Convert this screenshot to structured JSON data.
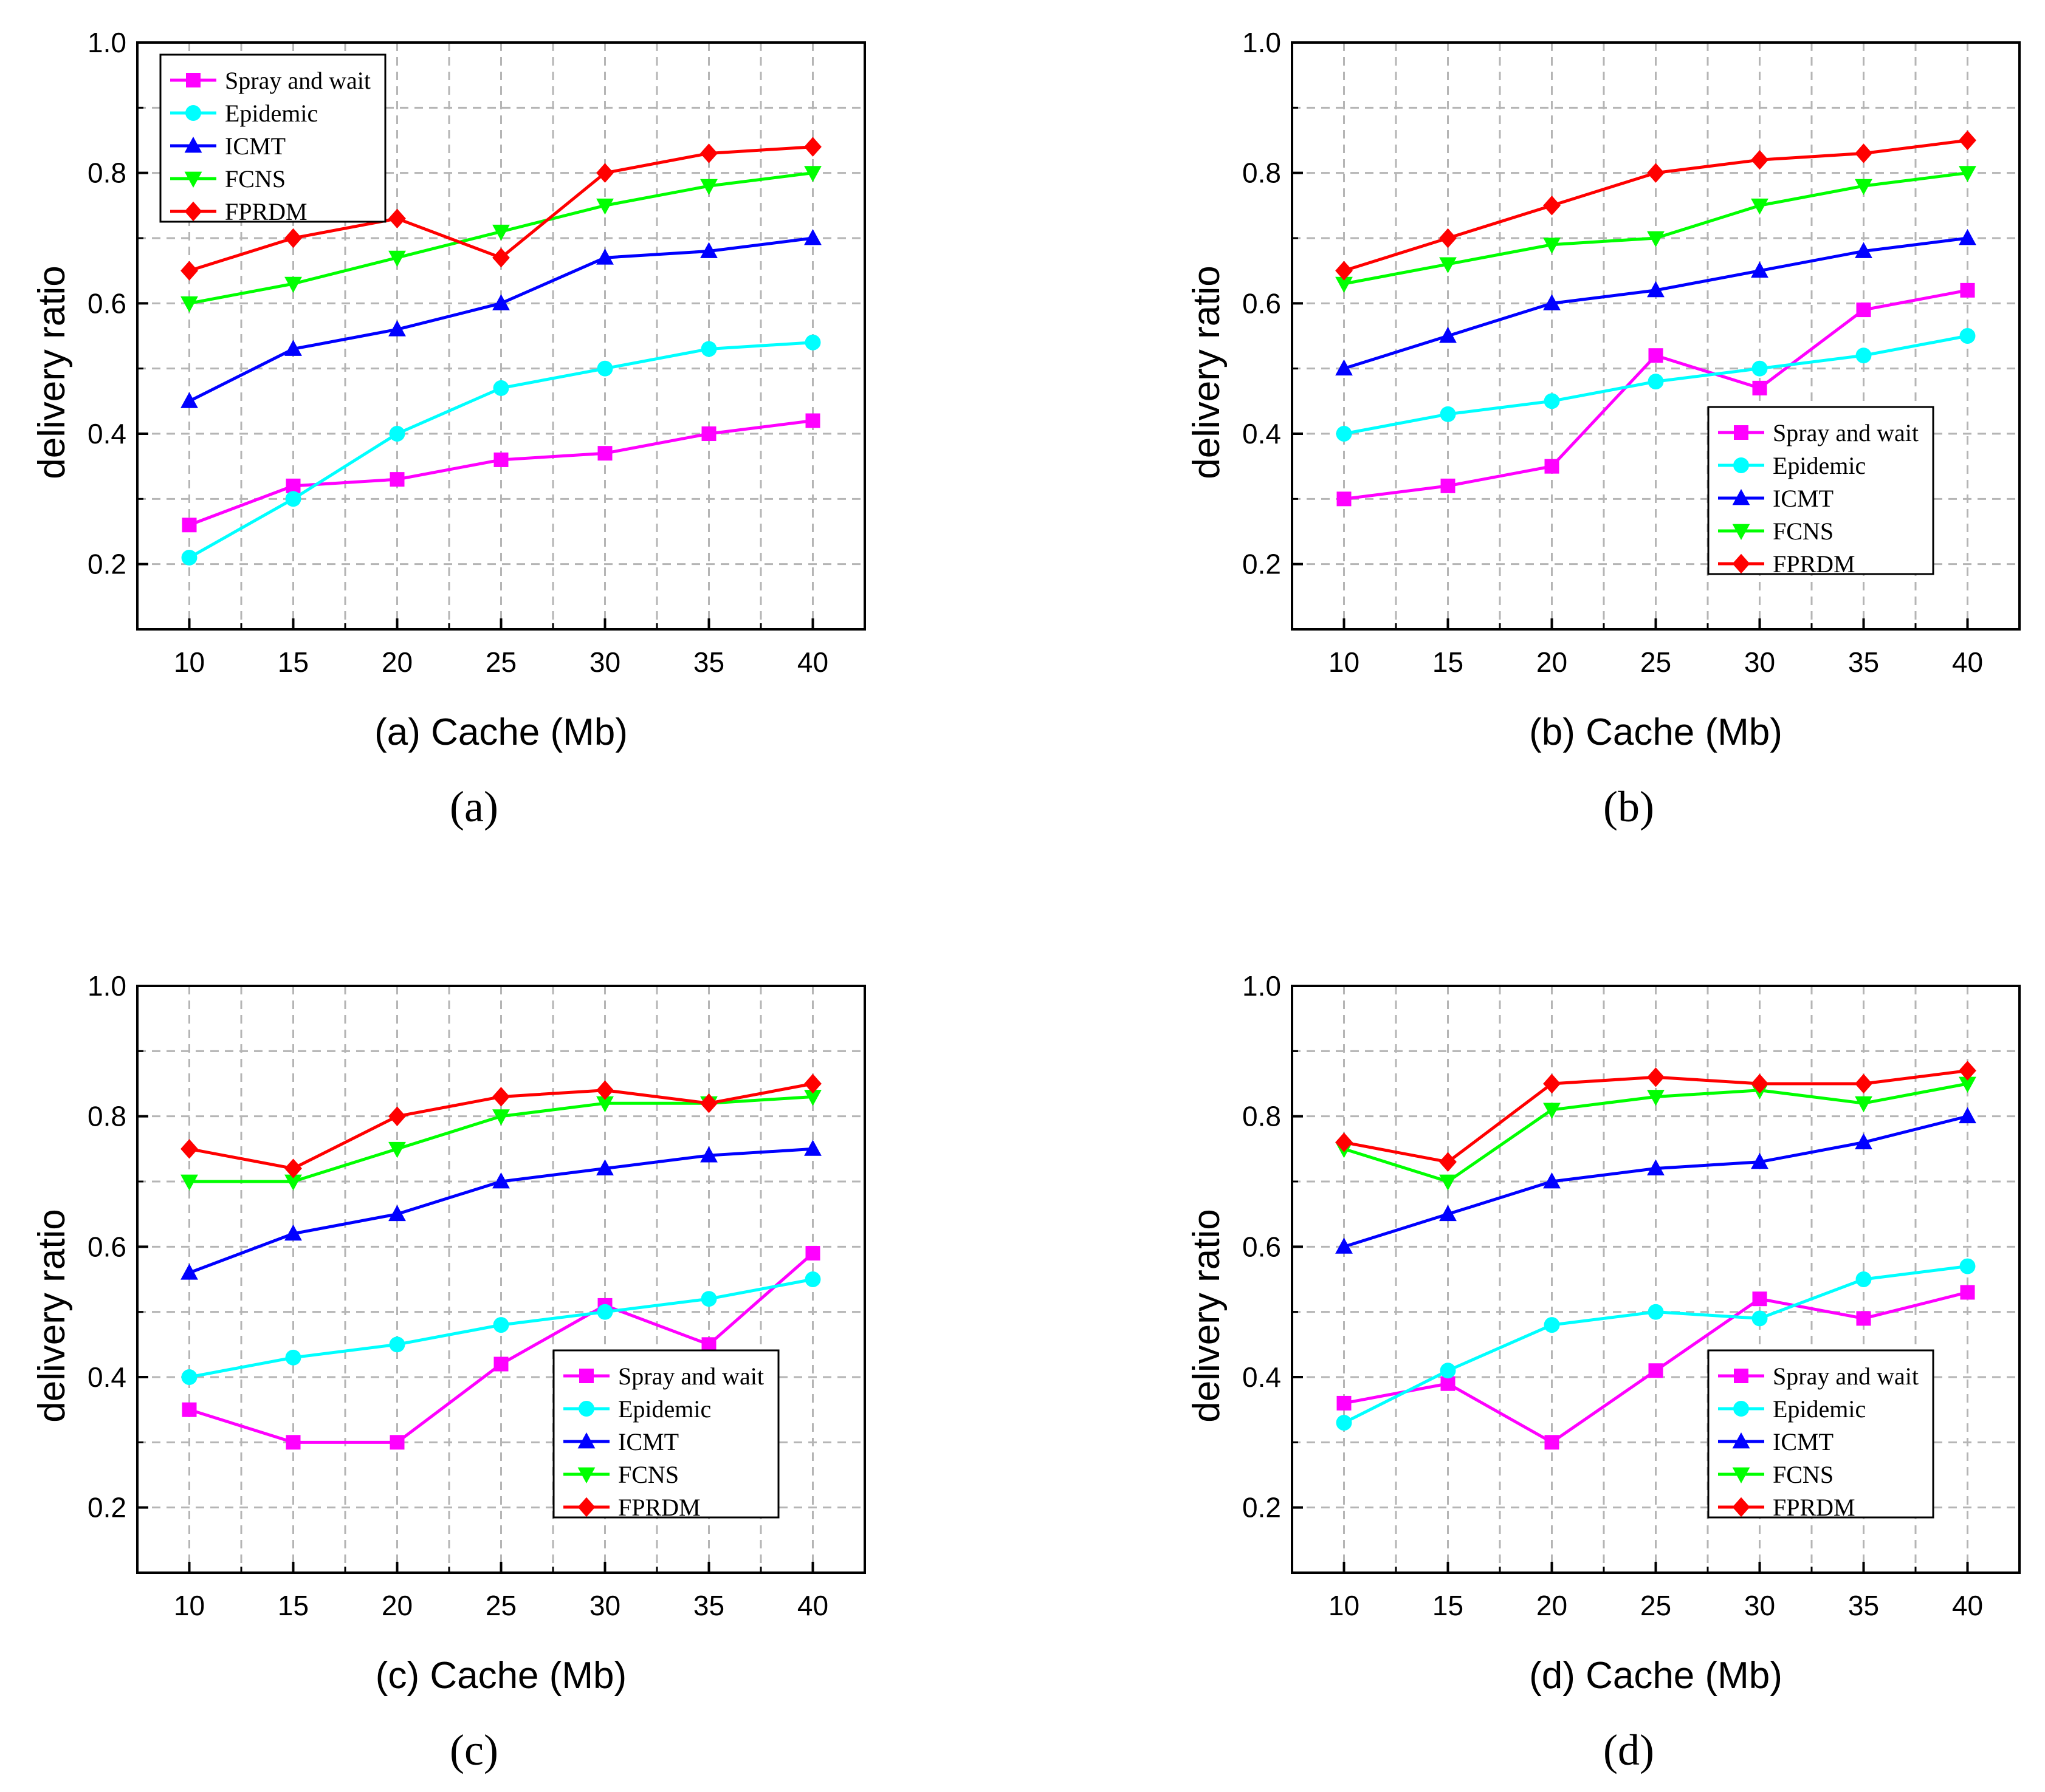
{
  "figure": {
    "subfigure_labels": [
      "(a)",
      "(b)",
      "(c)",
      "(d)"
    ]
  },
  "colors": {
    "Spray and wait": "#ff00ff",
    "Epidemic": "#00ffff",
    "ICMT": "#0000ff",
    "FCNS": "#00ff00",
    "FPRDM": "#ff0000"
  },
  "markers": {
    "Spray and wait": "square",
    "Epidemic": "circle",
    "ICMT": "triangle-up",
    "FCNS": "triangle-down",
    "FPRDM": "diamond"
  },
  "chart_data": [
    {
      "type": "line",
      "title": "",
      "xlabel": "(a) Cache (Mb)",
      "ylabel": "delivery ratio",
      "x": [
        10,
        15,
        20,
        25,
        30,
        35,
        40
      ],
      "xticks": [
        "10",
        "15",
        "20",
        "25",
        "30",
        "35",
        "40"
      ],
      "yticks": [
        "0.2",
        "0.4",
        "0.6",
        "0.8",
        "1.0"
      ],
      "xlim": [
        7.5,
        42.5
      ],
      "ylim": [
        0.1,
        1.0
      ],
      "grid": true,
      "legend": "top-left",
      "series": [
        {
          "name": "Spray and wait",
          "values": [
            0.26,
            0.32,
            0.33,
            0.36,
            0.37,
            0.4,
            0.42
          ]
        },
        {
          "name": "Epidemic",
          "values": [
            0.21,
            0.3,
            0.4,
            0.47,
            0.5,
            0.53,
            0.54
          ]
        },
        {
          "name": "ICMT",
          "values": [
            0.45,
            0.53,
            0.56,
            0.6,
            0.67,
            0.68,
            0.7
          ]
        },
        {
          "name": "FCNS",
          "values": [
            0.6,
            0.63,
            0.67,
            0.71,
            0.75,
            0.78,
            0.8
          ]
        },
        {
          "name": "FPRDM",
          "values": [
            0.65,
            0.7,
            0.73,
            0.67,
            0.8,
            0.83,
            0.84
          ]
        }
      ]
    },
    {
      "type": "line",
      "title": "",
      "xlabel": "(b) Cache (Mb)",
      "ylabel": "delivery ratio",
      "x": [
        10,
        15,
        20,
        25,
        30,
        35,
        40
      ],
      "xticks": [
        "10",
        "15",
        "20",
        "25",
        "30",
        "35",
        "40"
      ],
      "yticks": [
        "0.2",
        "0.4",
        "0.6",
        "0.8",
        "1.0"
      ],
      "xlim": [
        7.5,
        42.5
      ],
      "ylim": [
        0.1,
        1.0
      ],
      "grid": true,
      "legend": "bottom-right",
      "series": [
        {
          "name": "Spray and wait",
          "values": [
            0.3,
            0.32,
            0.35,
            0.52,
            0.47,
            0.59,
            0.62
          ]
        },
        {
          "name": "Epidemic",
          "values": [
            0.4,
            0.43,
            0.45,
            0.48,
            0.5,
            0.52,
            0.55
          ]
        },
        {
          "name": "ICMT",
          "values": [
            0.5,
            0.55,
            0.6,
            0.62,
            0.65,
            0.68,
            0.7
          ]
        },
        {
          "name": "FCNS",
          "values": [
            0.63,
            0.66,
            0.69,
            0.7,
            0.75,
            0.78,
            0.8
          ]
        },
        {
          "name": "FPRDM",
          "values": [
            0.65,
            0.7,
            0.75,
            0.8,
            0.82,
            0.83,
            0.85
          ]
        }
      ]
    },
    {
      "type": "line",
      "title": "",
      "xlabel": "(c) Cache (Mb)",
      "ylabel": "delivery ratio",
      "x": [
        10,
        15,
        20,
        25,
        30,
        35,
        40
      ],
      "xticks": [
        "10",
        "15",
        "20",
        "25",
        "30",
        "35",
        "40"
      ],
      "yticks": [
        "0.2",
        "0.4",
        "0.6",
        "0.8",
        "1.0"
      ],
      "xlim": [
        7.5,
        42.5
      ],
      "ylim": [
        0.1,
        1.0
      ],
      "grid": true,
      "legend": "bottom-right",
      "series": [
        {
          "name": "Spray and wait",
          "values": [
            0.35,
            0.3,
            0.3,
            0.42,
            0.51,
            0.45,
            0.59
          ]
        },
        {
          "name": "Epidemic",
          "values": [
            0.4,
            0.43,
            0.45,
            0.48,
            0.5,
            0.52,
            0.55
          ]
        },
        {
          "name": "ICMT",
          "values": [
            0.56,
            0.62,
            0.65,
            0.7,
            0.72,
            0.74,
            0.75
          ]
        },
        {
          "name": "FCNS",
          "values": [
            0.7,
            0.7,
            0.75,
            0.8,
            0.82,
            0.82,
            0.83
          ]
        },
        {
          "name": "FPRDM",
          "values": [
            0.75,
            0.72,
            0.8,
            0.83,
            0.84,
            0.82,
            0.85
          ]
        }
      ]
    },
    {
      "type": "line",
      "title": "",
      "xlabel": "(d) Cache (Mb)",
      "ylabel": "delivery ratio",
      "x": [
        10,
        15,
        20,
        25,
        30,
        35,
        40
      ],
      "xticks": [
        "10",
        "15",
        "20",
        "25",
        "30",
        "35",
        "40"
      ],
      "yticks": [
        "0.2",
        "0.4",
        "0.6",
        "0.8",
        "1.0"
      ],
      "xlim": [
        7.5,
        42.5
      ],
      "ylim": [
        0.1,
        1.0
      ],
      "grid": true,
      "legend": "bottom-right",
      "series": [
        {
          "name": "Spray and wait",
          "values": [
            0.36,
            0.39,
            0.3,
            0.41,
            0.52,
            0.49,
            0.53
          ]
        },
        {
          "name": "Epidemic",
          "values": [
            0.33,
            0.41,
            0.48,
            0.5,
            0.49,
            0.55,
            0.57
          ]
        },
        {
          "name": "ICMT",
          "values": [
            0.6,
            0.65,
            0.7,
            0.72,
            0.73,
            0.76,
            0.8
          ]
        },
        {
          "name": "FCNS",
          "values": [
            0.75,
            0.7,
            0.81,
            0.83,
            0.84,
            0.82,
            0.85
          ]
        },
        {
          "name": "FPRDM",
          "values": [
            0.76,
            0.73,
            0.85,
            0.86,
            0.85,
            0.85,
            0.87
          ]
        }
      ]
    }
  ]
}
